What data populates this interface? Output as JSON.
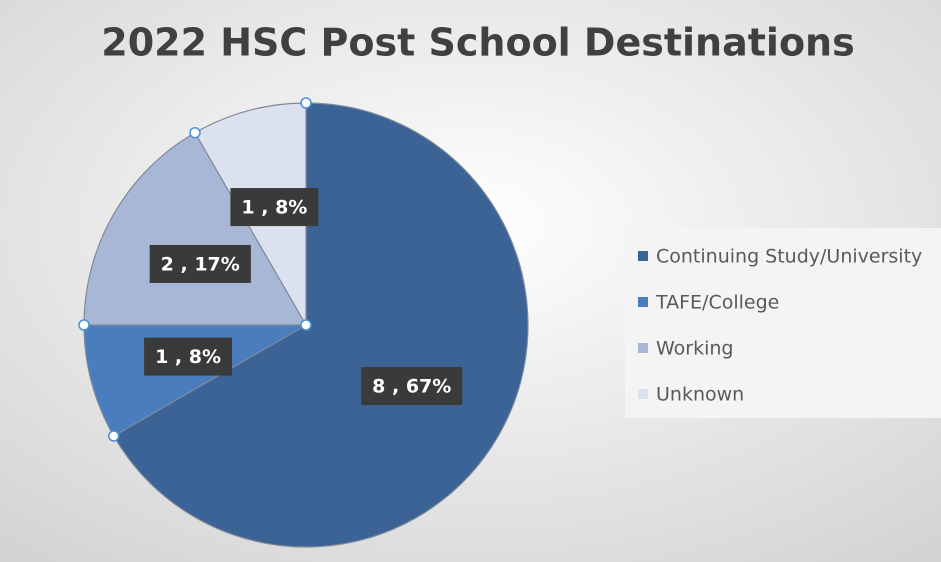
{
  "chart_data": {
    "type": "pie",
    "title": "2022 HSC Post School Destinations",
    "categories": [
      "Continuing Study/University",
      "TAFE/College",
      "Working",
      "Unknown"
    ],
    "values": [
      8,
      1,
      2,
      1
    ],
    "value_labels": [
      "8 , 67%",
      "1 , 8%",
      "2 , 17%",
      "1 , 8%"
    ],
    "colors": [
      "#3b6396",
      "#4a7dbd",
      "#a8b7d5",
      "#dbe1ef"
    ],
    "legend": "right"
  }
}
